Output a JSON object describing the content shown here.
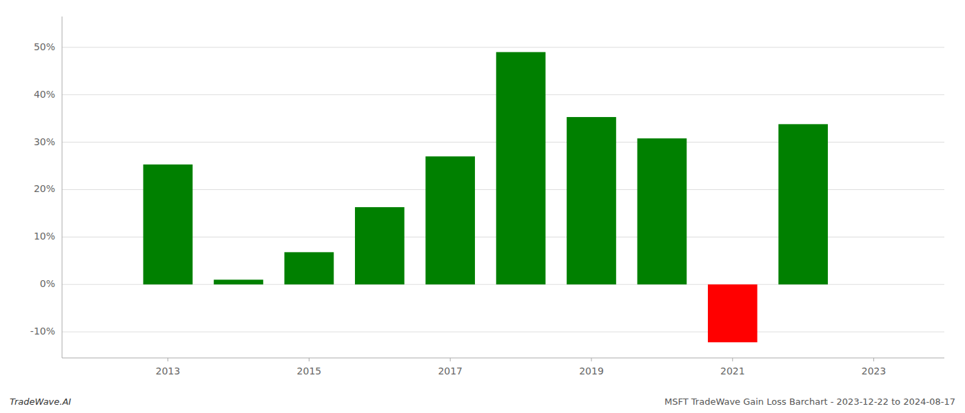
{
  "chart_data": {
    "type": "bar",
    "x": [
      2013,
      2014,
      2015,
      2016,
      2017,
      2018,
      2019,
      2020,
      2021,
      2022
    ],
    "values": [
      0.253,
      0.01,
      0.068,
      0.163,
      0.27,
      0.49,
      0.353,
      0.308,
      -0.122,
      0.338
    ],
    "colors": [
      "#008000",
      "#008000",
      "#008000",
      "#008000",
      "#008000",
      "#008000",
      "#008000",
      "#008000",
      "#ff0000",
      "#008000"
    ],
    "xlim": [
      2011.5,
      2024.0
    ],
    "xticks": [
      2013,
      2015,
      2017,
      2019,
      2021,
      2023
    ],
    "ylim": [
      -0.155,
      0.565
    ],
    "yticks": [
      {
        "value": -0.1,
        "label": "-10%"
      },
      {
        "value": 0.0,
        "label": "0%"
      },
      {
        "value": 0.1,
        "label": "10%"
      },
      {
        "value": 0.2,
        "label": "20%"
      },
      {
        "value": 0.3,
        "label": "30%"
      },
      {
        "value": 0.4,
        "label": "40%"
      },
      {
        "value": 0.5,
        "label": "50%"
      }
    ],
    "grid": true,
    "annotations": [
      "TradeWave.AI",
      "MSFT TradeWave Gain Loss Barchart - 2023-12-22 to 2024-08-17"
    ]
  }
}
